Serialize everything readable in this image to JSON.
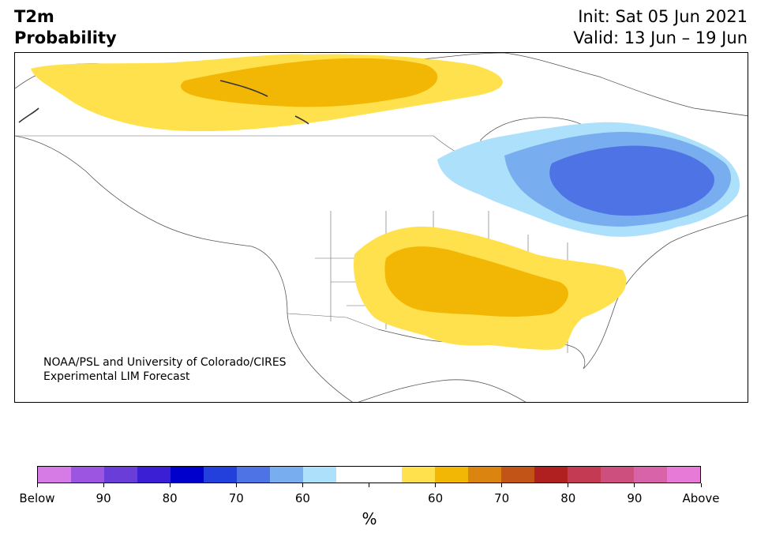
{
  "header": {
    "title_line1": "T2m",
    "title_line2": "Probability",
    "init": "Init: Sat 05 Jun 2021",
    "valid": "Valid: 13 Jun – 19 Jun"
  },
  "credit": {
    "line1": "NOAA/PSL and University of Colorado/CIRES",
    "line2": "Experimental LIM Forecast"
  },
  "colorbar": {
    "unit": "%",
    "colors": [
      "#d67ae6",
      "#9b55e0",
      "#6a3cd8",
      "#3a1fd4",
      "#0000cc",
      "#2340dd",
      "#4e73e4",
      "#78aeef",
      "#ade0fb",
      "#ffffff",
      "#ffffff",
      "#ffe14d",
      "#f2b705",
      "#db8410",
      "#c35418",
      "#b02020",
      "#c43a52",
      "#cc4f7e",
      "#d963a8",
      "#e67ad6"
    ],
    "tick_labels": [
      "Below",
      "90",
      "80",
      "70",
      "60",
      "",
      "60",
      "70",
      "80",
      "90",
      "Above"
    ]
  },
  "map": {
    "anomalies": [
      {
        "region": "northwestern Canada",
        "category": "above",
        "max_level": "60"
      },
      {
        "region": "central and southeastern United States",
        "category": "above",
        "max_level": "60"
      },
      {
        "region": "Quebec and Great Lakes",
        "category": "below",
        "max_level": "70"
      }
    ]
  }
}
